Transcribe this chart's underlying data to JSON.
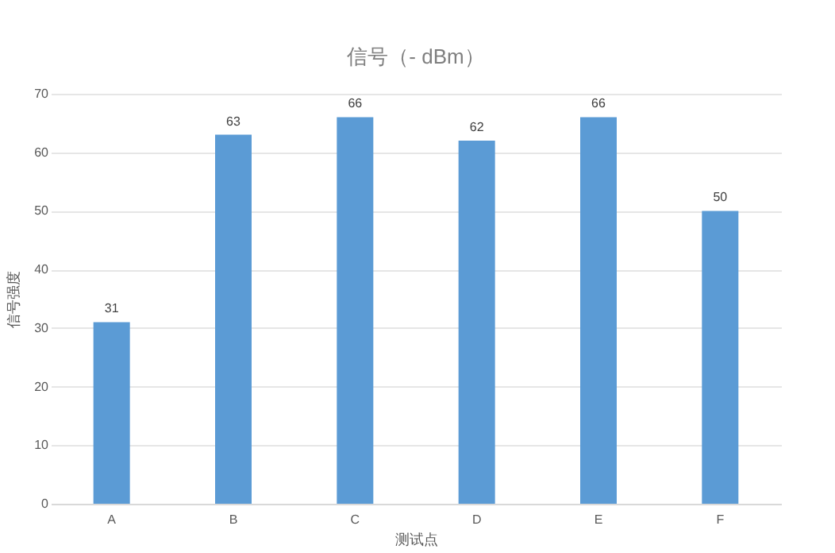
{
  "chart_data": {
    "type": "bar",
    "title": "信号（- dBm）",
    "xlabel": "测试点",
    "ylabel": "信号强度",
    "categories": [
      "A",
      "B",
      "C",
      "D",
      "E",
      "F"
    ],
    "values": [
      31,
      63,
      66,
      62,
      66,
      50
    ],
    "color": "#5b9bd5",
    "ylim": [
      0,
      70
    ],
    "yticks": [
      0,
      10,
      20,
      30,
      40,
      50,
      60,
      70
    ],
    "grid": "y",
    "data_labels": true
  }
}
